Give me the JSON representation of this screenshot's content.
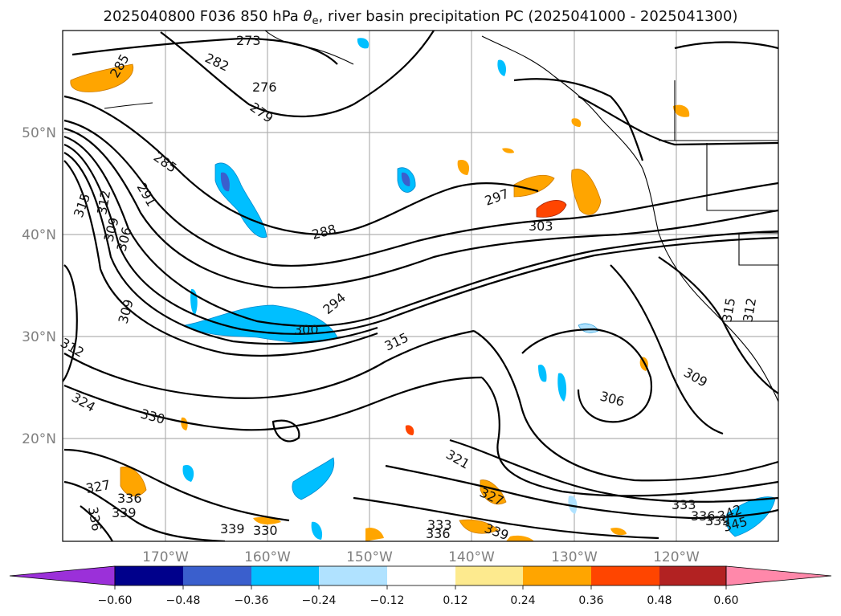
{
  "title": {
    "prefix": "2025040800 F036 850 hPa ",
    "theta": "θ",
    "sub": "e",
    "suffix": ", river basin precipitation PC (2025041000 - 2025041300)"
  },
  "map": {
    "latitude_labels": [
      "50°N",
      "40°N",
      "30°N",
      "20°N"
    ],
    "longitude_labels": [
      "170°W",
      "160°W",
      "150°W",
      "140°W",
      "130°W",
      "120°W"
    ],
    "contour_labels": [
      "273",
      "282",
      "276",
      "279",
      "285",
      "285",
      "291",
      "315",
      "312",
      "309",
      "306",
      "309",
      "288",
      "294",
      "300",
      "297",
      "303",
      "315",
      "312",
      "324",
      "330",
      "306",
      "309",
      "321",
      "327",
      "336",
      "339",
      "327",
      "336",
      "339",
      "330",
      "333",
      "336",
      "339",
      "333",
      "336",
      "339",
      "342",
      "345",
      "315",
      "312"
    ]
  },
  "colorbar": {
    "colors": [
      "#9b30d9",
      "#00008b",
      "#3a5fcd",
      "#00bfff",
      "#b0e2ff",
      "#ffffff",
      "#fdea8e",
      "#ffa500",
      "#ff4500",
      "#b22222",
      "#ff88aa"
    ],
    "tick_labels": [
      "−0.60",
      "−0.48",
      "−0.36",
      "−0.24",
      "−0.12",
      "0.12",
      "0.24",
      "0.36",
      "0.48",
      "0.60"
    ]
  }
}
